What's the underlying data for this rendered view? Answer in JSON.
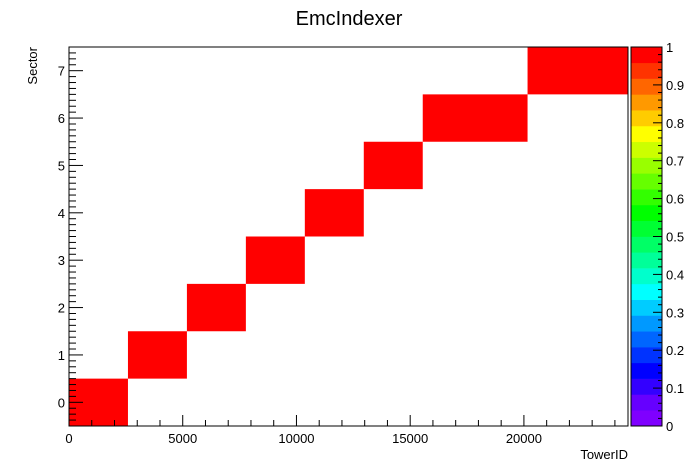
{
  "chart_data": {
    "type": "heatmap",
    "title": "EmcIndexer",
    "xlabel": "TowerID",
    "ylabel": "Sector",
    "xlim": [
      0,
      24576
    ],
    "ylim": [
      -0.5,
      7.5
    ],
    "x_ticks": [
      0,
      5000,
      10000,
      15000,
      20000
    ],
    "y_ticks": [
      0,
      1,
      2,
      3,
      4,
      5,
      6,
      7
    ],
    "z_range": [
      0,
      1
    ],
    "z_ticks": [
      0,
      0.1,
      0.2,
      0.3,
      0.4,
      0.5,
      0.6,
      0.7,
      0.8,
      0.9,
      1
    ],
    "grid": false,
    "cells": [
      {
        "sector": 0,
        "x0": 0,
        "x1": 2592,
        "value": 1
      },
      {
        "sector": 1,
        "x0": 2592,
        "x1": 5184,
        "value": 1
      },
      {
        "sector": 2,
        "x0": 5184,
        "x1": 7776,
        "value": 1
      },
      {
        "sector": 3,
        "x0": 7776,
        "x1": 10368,
        "value": 1
      },
      {
        "sector": 4,
        "x0": 10368,
        "x1": 12960,
        "value": 1
      },
      {
        "sector": 5,
        "x0": 12960,
        "x1": 15552,
        "value": 1
      },
      {
        "sector": 6,
        "x0": 15552,
        "x1": 20160,
        "value": 1
      },
      {
        "sector": 7,
        "x0": 20160,
        "x1": 24576,
        "value": 1
      }
    ],
    "palette_colors": [
      "#7f00ff",
      "#6600ff",
      "#3300ff",
      "#0000ff",
      "#0033ff",
      "#0066ff",
      "#0099ff",
      "#00ccff",
      "#00ffff",
      "#00ffcc",
      "#00ff99",
      "#00ff66",
      "#00ff33",
      "#00ff00",
      "#33ff00",
      "#66ff00",
      "#99ff00",
      "#ccff00",
      "#ffff00",
      "#ffcc00",
      "#ff9900",
      "#ff6600",
      "#ff3300",
      "#ff0000"
    ]
  }
}
